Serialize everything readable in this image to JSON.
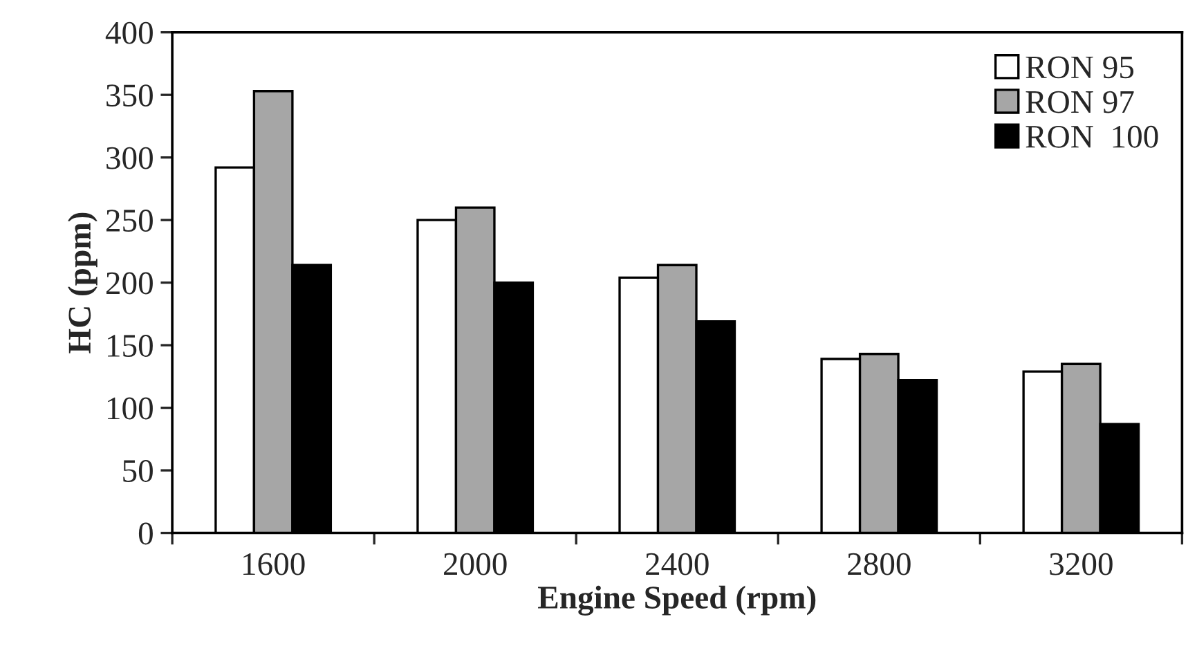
{
  "chart_data": {
    "type": "bar",
    "xlabel": "Engine Speed (rpm)",
    "ylabel": "HC (ppm)",
    "categories": [
      "1600",
      "2000",
      "2400",
      "2800",
      "3200"
    ],
    "series": [
      {
        "name": "RON 95",
        "color": "#ffffff",
        "values": [
          292,
          250,
          204,
          139,
          129
        ]
      },
      {
        "name": "RON 97",
        "color": "#a6a6a6",
        "values": [
          353,
          260,
          214,
          143,
          135
        ]
      },
      {
        "name": "RON  100",
        "color": "#000000",
        "values": [
          214,
          200,
          169,
          122,
          87
        ]
      }
    ],
    "ylim": [
      0,
      400
    ],
    "yticks": [
      0,
      50,
      100,
      150,
      200,
      250,
      300,
      350,
      400
    ],
    "grid": false,
    "legend": "top right"
  }
}
